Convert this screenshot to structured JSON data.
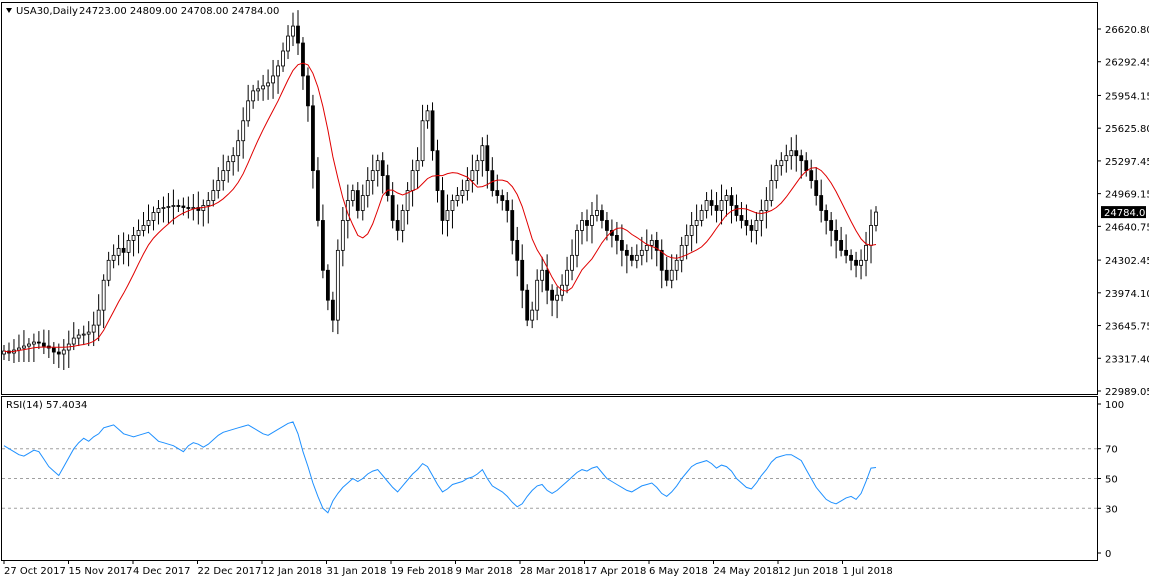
{
  "header": {
    "menu_icon": "triangle-down-icon",
    "symbol": "USA30,Daily",
    "ohlc": "24723.00 24809.00 24708.00 24784.00"
  },
  "price_axis": {
    "labels": [
      "26620.80",
      "26292.45",
      "25954.15",
      "25625.80",
      "25297.45",
      "24969.15",
      "24640.75",
      "24302.45",
      "23974.10",
      "23645.75",
      "23317.40",
      "22989.05"
    ],
    "current_price": "24784.00"
  },
  "rsi_panel": {
    "label": "RSI(14) 57.4034",
    "levels": [
      "100",
      "70",
      "50",
      "30",
      "0"
    ]
  },
  "time_axis": {
    "labels": [
      "27 Oct 2017",
      "15 Nov 2017",
      "4 Dec 2017",
      "22 Dec 2017",
      "12 Jan 2018",
      "31 Jan 2018",
      "19 Feb 2018",
      "9 Mar 2018",
      "28 Mar 2018",
      "17 Apr 2018",
      "6 May 2018",
      "24 May 2018",
      "12 Jun 2018",
      "1 Jul 2018"
    ]
  },
  "colors": {
    "bull_candle": "#ffffff",
    "bear_candle": "#000000",
    "ma_line": "#e00000",
    "rsi_line": "#1e90ff",
    "current_price_bg": "#000000",
    "grid_dash": "#a0a0a0"
  },
  "chart_data": [
    {
      "type": "candlestick",
      "title": "USA30,Daily",
      "ylim": [
        22989.05,
        26620.8
      ],
      "overlay": "moving-average (red)",
      "close": [
        23390,
        23370,
        23400,
        23420,
        23440,
        23460,
        23480,
        23470,
        23440,
        23420,
        23380,
        23360,
        23400,
        23460,
        23520,
        23550,
        23560,
        23580,
        23650,
        23800,
        24100,
        24300,
        24350,
        24420,
        24380,
        24500,
        24550,
        24600,
        24650,
        24700,
        24780,
        24820,
        24830,
        24840,
        24850,
        24845,
        24830,
        24820,
        24830,
        24800,
        24850,
        24900,
        25000,
        25100,
        25200,
        25290,
        25350,
        25500,
        25700,
        25900,
        26000,
        26020,
        26050,
        26080,
        26150,
        26250,
        26400,
        26550,
        26650,
        26480,
        26150,
        25850,
        25200,
        24700,
        24200,
        23900,
        23700,
        24400,
        24700,
        24900,
        25000,
        24800,
        24950,
        25100,
        25200,
        25300,
        25150,
        24950,
        24700,
        24600,
        24800,
        25000,
        25200,
        25300,
        25700,
        25800,
        25400,
        25000,
        24700,
        24800,
        24900,
        24950,
        25000,
        25100,
        25200,
        25300,
        25450,
        25200,
        25000,
        24950,
        24900,
        24800,
        24500,
        24300,
        24000,
        23700,
        23800,
        24100,
        24200,
        24000,
        23900,
        23950,
        24050,
        24200,
        24350,
        24600,
        24700,
        24650,
        24750,
        24800,
        24700,
        24600,
        24550,
        24500,
        24400,
        24350,
        24300,
        24350,
        24400,
        24450,
        24500,
        24400,
        24200,
        24100,
        24200,
        24300,
        24450,
        24550,
        24650,
        24700,
        24800,
        24900,
        24850,
        24800,
        24900,
        24950,
        24850,
        24750,
        24700,
        24650,
        24600,
        24700,
        24800,
        24900,
        25100,
        25250,
        25300,
        25350,
        25400,
        25350,
        25300,
        25200,
        25100,
        24950,
        24800,
        24700,
        24600,
        24500,
        24400,
        24350,
        24300,
        24250,
        24300,
        24450,
        24650,
        24784
      ]
    },
    {
      "type": "line",
      "title": "RSI(14) 57.4034",
      "ylim": [
        0,
        100
      ],
      "levels": [
        70,
        50,
        30
      ],
      "values": [
        72,
        70,
        68,
        66,
        65,
        67,
        69,
        68,
        63,
        58,
        55,
        52,
        58,
        64,
        70,
        74,
        77,
        75,
        78,
        80,
        84,
        85,
        86,
        83,
        80,
        79,
        78,
        79,
        80,
        81,
        78,
        75,
        74,
        73,
        72,
        70,
        68,
        72,
        74,
        73,
        71,
        73,
        76,
        79,
        81,
        82,
        83,
        84,
        85,
        86,
        84,
        82,
        80,
        79,
        81,
        83,
        85,
        87,
        88,
        80,
        68,
        58,
        47,
        38,
        30,
        27,
        35,
        40,
        44,
        47,
        50,
        48,
        50,
        53,
        55,
        56,
        52,
        48,
        44,
        41,
        45,
        49,
        53,
        56,
        60,
        58,
        52,
        46,
        41,
        43,
        46,
        47,
        48,
        50,
        51,
        53,
        56,
        50,
        45,
        43,
        41,
        38,
        34,
        31,
        33,
        38,
        42,
        45,
        46,
        42,
        40,
        42,
        45,
        48,
        51,
        54,
        56,
        55,
        57,
        58,
        54,
        50,
        48,
        46,
        44,
        42,
        41,
        43,
        45,
        46,
        47,
        44,
        40,
        38,
        41,
        45,
        50,
        54,
        58,
        60,
        61,
        62,
        60,
        57,
        59,
        58,
        55,
        50,
        47,
        44,
        43,
        47,
        52,
        56,
        61,
        64,
        65,
        66,
        66,
        64,
        62,
        56,
        50,
        44,
        40,
        36,
        34,
        33,
        35,
        37,
        38,
        36,
        40,
        48,
        57,
        57.4034
      ]
    }
  ]
}
